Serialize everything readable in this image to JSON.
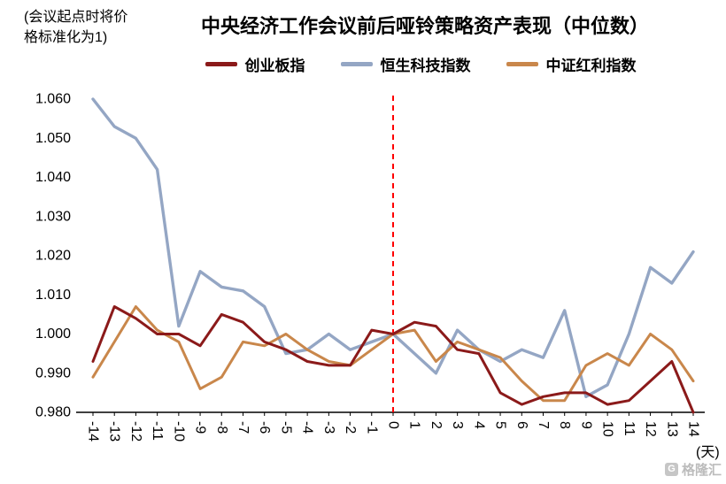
{
  "note": {
    "line1": "(会议起点时将价",
    "line2": "格标准化为1)"
  },
  "title": "中央经济工作会议前后哑铃策略资产表现（中位数）",
  "legend": [
    {
      "label": "创业板指",
      "color": "#8B1A1A"
    },
    {
      "label": "恒生科技指数",
      "color": "#94A6C4"
    },
    {
      "label": "中证红利指数",
      "color": "#C9874B"
    }
  ],
  "x_axis_unit": "(天)",
  "watermark": {
    "text": "格隆汇",
    "logo_letter": "G"
  },
  "chart_data": {
    "type": "line",
    "title": "中央经济工作会议前后哑铃策略资产表现（中位数）",
    "normalization_note": "(会议起点时将价格标准化为1)",
    "x": [
      -14,
      -13,
      -12,
      -11,
      -10,
      -9,
      -8,
      -7,
      -6,
      -5,
      -4,
      -3,
      -2,
      -1,
      0,
      1,
      2,
      3,
      4,
      5,
      6,
      7,
      8,
      9,
      10,
      11,
      12,
      13,
      14
    ],
    "x_unit": "(天)",
    "ylim": [
      0.98,
      1.06
    ],
    "ytick_step": 0.01,
    "ytick_decimals": 3,
    "grid": false,
    "legend_position": "top",
    "event_line": {
      "x": 0,
      "color": "#FF0000",
      "style": "dashed"
    },
    "series": [
      {
        "name": "创业板指",
        "key": "chinext",
        "color": "#8B1A1A",
        "width": 3,
        "values": [
          0.993,
          1.007,
          1.004,
          1.0,
          1.0,
          0.997,
          1.005,
          1.003,
          0.998,
          0.996,
          0.993,
          0.992,
          0.992,
          1.001,
          1.0,
          1.003,
          1.002,
          0.996,
          0.995,
          0.985,
          0.982,
          0.984,
          0.985,
          0.985,
          0.982,
          0.983,
          0.988,
          0.993,
          0.98
        ]
      },
      {
        "name": "恒生科技指数",
        "key": "hstech",
        "color": "#94A6C4",
        "width": 3.4,
        "values": [
          1.06,
          1.053,
          1.05,
          1.042,
          1.002,
          1.016,
          1.012,
          1.011,
          1.007,
          0.995,
          0.996,
          1.0,
          0.996,
          0.998,
          1.0,
          0.995,
          0.99,
          1.001,
          0.996,
          0.993,
          0.996,
          0.994,
          1.006,
          0.984,
          0.987,
          1.0,
          1.017,
          1.013,
          1.021
        ]
      },
      {
        "name": "中证红利指数",
        "key": "dividend",
        "color": "#C9874B",
        "width": 3,
        "values": [
          0.989,
          0.998,
          1.007,
          1.001,
          0.998,
          0.986,
          0.989,
          0.998,
          0.997,
          1.0,
          0.996,
          0.993,
          0.992,
          0.996,
          1.0,
          1.001,
          0.993,
          0.998,
          0.996,
          0.994,
          0.988,
          0.983,
          0.983,
          0.992,
          0.995,
          0.992,
          1.0,
          0.996,
          0.988
        ]
      }
    ],
    "draw_order": [
      1,
      2,
      0
    ]
  }
}
